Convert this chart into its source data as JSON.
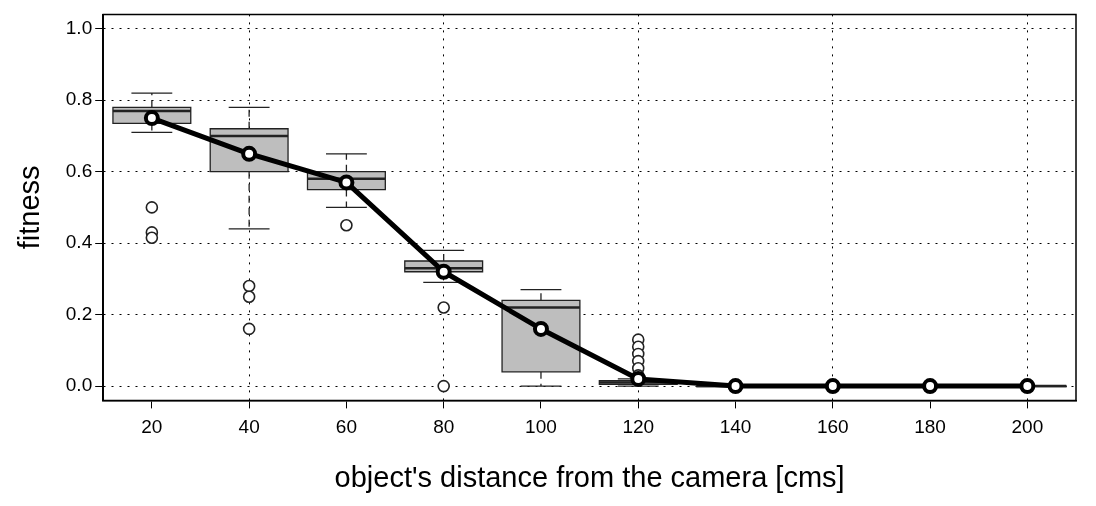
{
  "chart_data": {
    "type": "box",
    "xlabel": "object's distance from the camera [cms]",
    "ylabel": "fitness",
    "categories": [
      "20",
      "40",
      "60",
      "80",
      "100",
      "120",
      "140",
      "160",
      "180",
      "200"
    ],
    "boxes": [
      {
        "low": 0.71,
        "q1": 0.735,
        "median": 0.77,
        "q3": 0.78,
        "high": 0.82,
        "outliers": [
          0.5,
          0.43,
          0.415
        ]
      },
      {
        "low": 0.44,
        "q1": 0.6,
        "median": 0.7,
        "q3": 0.72,
        "high": 0.78,
        "outliers": [
          0.28,
          0.25,
          0.16
        ]
      },
      {
        "low": 0.5,
        "q1": 0.55,
        "median": 0.58,
        "q3": 0.6,
        "high": 0.65,
        "outliers": [
          0.45
        ]
      },
      {
        "low": 0.29,
        "q1": 0.32,
        "median": 0.33,
        "q3": 0.35,
        "high": 0.38,
        "outliers": [
          0.22,
          0.0
        ]
      },
      {
        "low": 0.0,
        "q1": 0.04,
        "median": 0.22,
        "q3": 0.24,
        "high": 0.27
      },
      {
        "low": 0.0,
        "q1": 0.005,
        "median": 0.01,
        "q3": 0.015,
        "high": 0.02,
        "outliers": [
          0.13,
          0.11,
          0.09,
          0.07,
          0.05,
          0.03
        ]
      },
      {
        "low": 0.0,
        "q1": 0.0,
        "median": 0.0,
        "q3": 0.0,
        "high": 0.0
      },
      {
        "low": 0.0,
        "q1": 0.0,
        "median": 0.0,
        "q3": 0.0,
        "high": 0.0
      },
      {
        "low": 0.0,
        "q1": 0.0,
        "median": 0.0,
        "q3": 0.0,
        "high": 0.0
      },
      {
        "low": 0.0,
        "q1": 0.0,
        "median": 0.0,
        "q3": 0.0,
        "high": 0.0
      }
    ],
    "color": "#bebebe",
    "series": [
      {
        "type": "line",
        "color": "#000000",
        "values": [
          0.75,
          0.65,
          0.57,
          0.32,
          0.16,
          0.02,
          0.0,
          0.0,
          0.0,
          0.0
        ]
      }
    ],
    "marker": "circle",
    "ylim": [
      -0.04,
      1.04
    ],
    "yticks": [
      {
        "value": 0,
        "label": "0.0"
      },
      {
        "value": 0.2,
        "label": "0.2"
      },
      {
        "value": 0.4,
        "label": "0.4"
      },
      {
        "value": 0.6,
        "label": "0.6"
      },
      {
        "value": 0.8,
        "label": "0.8"
      },
      {
        "value": 1,
        "label": "1.0"
      }
    ],
    "grid": true,
    "legend": false
  }
}
